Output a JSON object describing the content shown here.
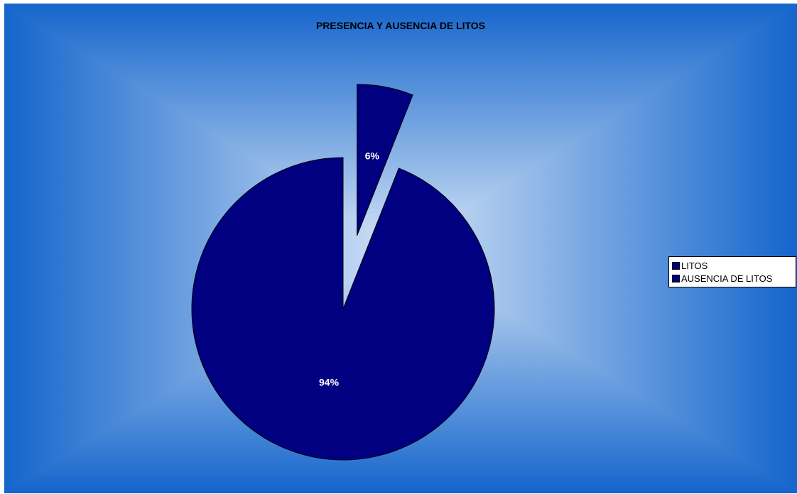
{
  "chart_data": {
    "type": "pie",
    "title": "PRESENCIA Y AUSENCIA DE LITOS",
    "categories": [
      "LITOS",
      "AUSENCIA DE LITOS"
    ],
    "values": [
      6,
      94
    ],
    "labels": [
      "6%",
      "94%"
    ],
    "exploded": [
      true,
      false
    ],
    "legend": "right",
    "colors": {
      "slice_fill": "#000080",
      "slice_stroke": "#000000",
      "background_edge": "#1565cc",
      "background_center": "#d2e3f6"
    }
  }
}
